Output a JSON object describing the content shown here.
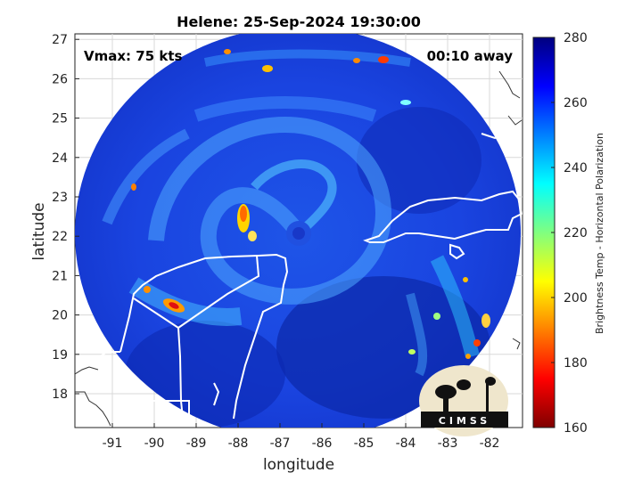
{
  "title": "Helene: 25-Sep-2024 19:30:00",
  "annotations": {
    "vmax": "Vmax: 75 kts",
    "away": "00:10 away"
  },
  "x_axis": {
    "label": "longitude",
    "ticks": [
      "-91",
      "-90",
      "-89",
      "-88",
      "-87",
      "-86",
      "-85",
      "-84",
      "-83",
      "-82"
    ]
  },
  "y_axis": {
    "label": "latitude",
    "ticks": [
      "18",
      "19",
      "20",
      "21",
      "22",
      "23",
      "24",
      "25",
      "26",
      "27"
    ]
  },
  "colorbar": {
    "label": "Brightness Temp - Horizontal Polarization",
    "ticks": [
      "160",
      "180",
      "200",
      "220",
      "240",
      "260",
      "280"
    ],
    "colors": [
      "#7f0000",
      "#ff0000",
      "#ff8000",
      "#ffff00",
      "#80ff80",
      "#00ffff",
      "#0080ff",
      "#0000ff",
      "#00007f"
    ]
  },
  "logo": {
    "text": "CIMSS"
  },
  "colors": {
    "scan_blue": "#1133d8",
    "mid_blue": "#2a6cf0",
    "deep_blue": "#0a1f9a",
    "coast": "#ffffff"
  }
}
